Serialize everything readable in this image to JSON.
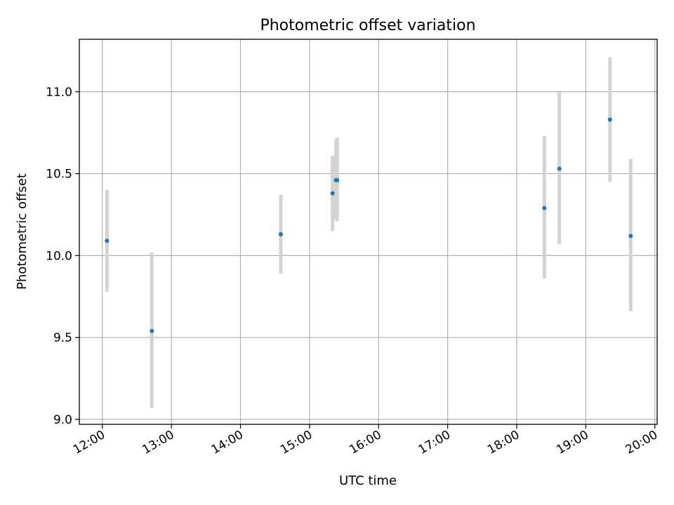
{
  "chart_data": {
    "type": "scatter",
    "title": "Photometric offset variation",
    "xlabel": "UTC time",
    "ylabel": "Photometric offset",
    "x_axis_kind": "time",
    "xlim": [
      "11:40",
      "20:02"
    ],
    "ylim": [
      8.97,
      11.32
    ],
    "x_ticks": [
      "12:00",
      "13:00",
      "14:00",
      "15:00",
      "16:00",
      "17:00",
      "18:00",
      "19:00",
      "20:00"
    ],
    "y_ticks": [
      "9.0",
      "9.5",
      "10.0",
      "10.5",
      "11.0"
    ],
    "grid": true,
    "marker_color": "#1f77b4",
    "errorbar_color": "#d3d3d3",
    "points": [
      {
        "x": "12:04",
        "y": 10.09,
        "ylow": 9.78,
        "yhigh": 10.4
      },
      {
        "x": "12:43",
        "y": 9.54,
        "ylow": 9.07,
        "yhigh": 10.02
      },
      {
        "x": "14:35",
        "y": 10.13,
        "ylow": 9.89,
        "yhigh": 10.37
      },
      {
        "x": "15:20",
        "y": 10.38,
        "ylow": 10.15,
        "yhigh": 10.61
      },
      {
        "x": "15:23",
        "y": 10.46,
        "ylow": 10.22,
        "yhigh": 10.71
      },
      {
        "x": "15:24",
        "y": 10.46,
        "ylow": 10.21,
        "yhigh": 10.72
      },
      {
        "x": "18:24",
        "y": 10.29,
        "ylow": 9.86,
        "yhigh": 10.73
      },
      {
        "x": "18:37",
        "y": 10.53,
        "ylow": 10.07,
        "yhigh": 11.0
      },
      {
        "x": "19:21",
        "y": 10.83,
        "ylow": 10.45,
        "yhigh": 11.21
      },
      {
        "x": "19:39",
        "y": 10.12,
        "ylow": 9.66,
        "yhigh": 10.59
      }
    ]
  }
}
